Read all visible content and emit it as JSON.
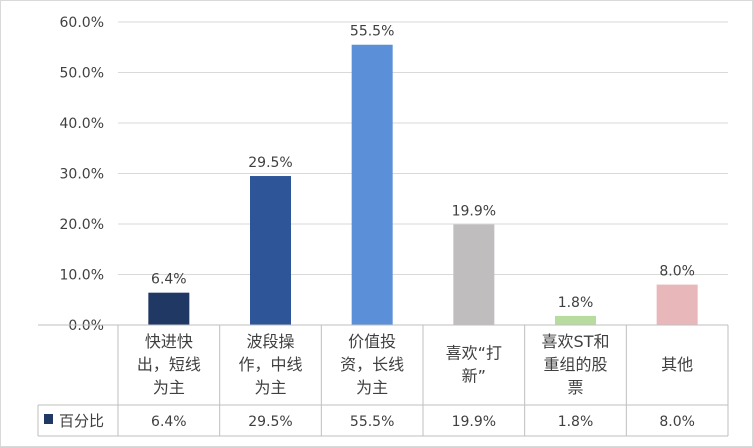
{
  "chart_data": {
    "type": "bar",
    "categories": [
      "快进快出，短线为主",
      "波段操作，中线为主",
      "价值投资，长线为主",
      "喜欢“打新”",
      "喜欢ST和重组的股票",
      "其他"
    ],
    "category_lines": [
      [
        "快进快",
        "出，短线",
        "为主"
      ],
      [
        "波段操",
        "作，中线",
        "为主"
      ],
      [
        "价值投",
        "资，长线",
        "为主"
      ],
      [
        "喜欢“打",
        "新”"
      ],
      [
        "喜欢ST和",
        "重组的股",
        "票"
      ],
      [
        "其他"
      ]
    ],
    "series": [
      {
        "name": "百分比",
        "values": [
          6.4,
          29.5,
          55.5,
          19.9,
          1.8,
          8.0
        ]
      }
    ],
    "value_labels": [
      "6.4%",
      "29.5%",
      "55.5%",
      "19.9%",
      "1.8%",
      "8.0%"
    ],
    "ytick_labels": [
      "0.0%",
      "10.0%",
      "20.0%",
      "30.0%",
      "40.0%",
      "50.0%",
      "60.0%"
    ],
    "ylim": [
      0,
      60
    ],
    "bar_colors": [
      "#1f3864",
      "#2e5597",
      "#5b8fd8",
      "#c0bdbf",
      "#b8dba0",
      "#e8b7b9"
    ],
    "legend_marker_color": "#1f3864",
    "grid": true,
    "data_table": true
  }
}
